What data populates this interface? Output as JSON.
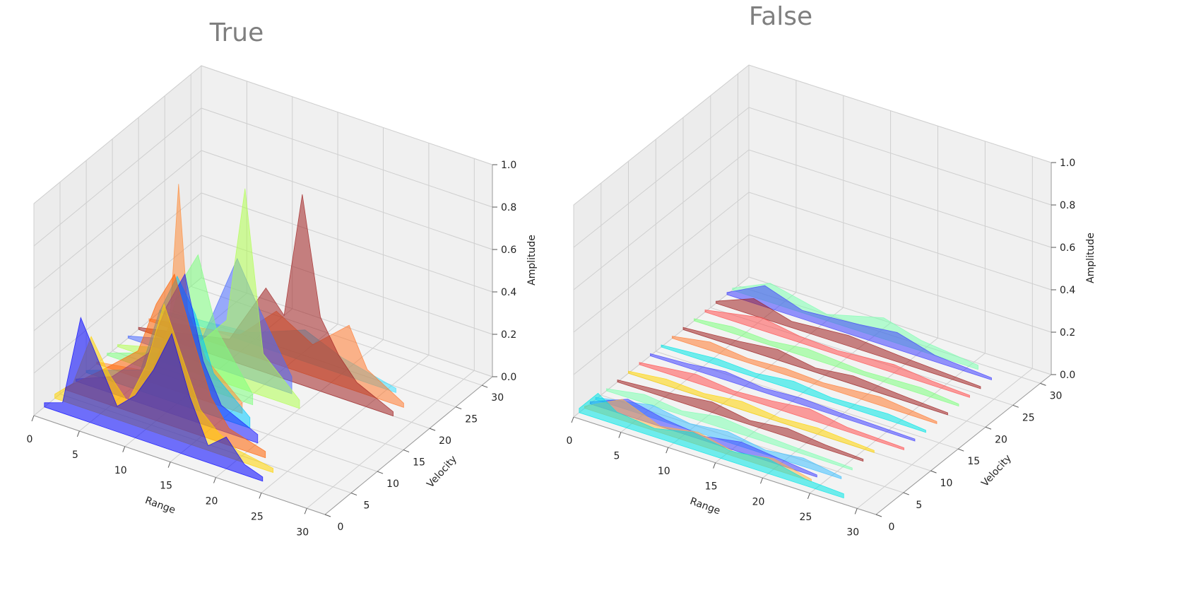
{
  "chart_data": [
    {
      "type": "area",
      "projection": "3d",
      "title": "True",
      "xlabel": "Range",
      "ylabel": "Velocity",
      "zlabel": "Amplitude",
      "xlim": [
        0,
        32
      ],
      "ylim": [
        0,
        32
      ],
      "zlim": [
        0,
        1
      ],
      "xticks": [
        0,
        5,
        10,
        15,
        20,
        25,
        30
      ],
      "yticks": [
        0,
        5,
        10,
        15,
        20,
        25,
        30
      ],
      "zticks": [
        "0.0",
        "0.2",
        "0.4",
        "0.6",
        "0.8",
        "1.0"
      ],
      "grid": true,
      "colormap": [
        "#0000ff",
        "#0080ff",
        "#00ffff",
        "#80ff80",
        "#ffff00",
        "#ff8000",
        "#ff0000",
        "#800000"
      ],
      "series": [
        {
          "velocity": 2,
          "color": "#0000ff",
          "points": [
            [
              0,
              0.02
            ],
            [
              2,
              0.05
            ],
            [
              4,
              0.48
            ],
            [
              6,
              0.3
            ],
            [
              8,
              0.12
            ],
            [
              10,
              0.2
            ],
            [
              12,
              0.35
            ],
            [
              14,
              0.55
            ],
            [
              16,
              0.28
            ],
            [
              18,
              0.08
            ],
            [
              20,
              0.15
            ],
            [
              22,
              0.05
            ],
            [
              24,
              0.02
            ]
          ]
        },
        {
          "velocity": 4,
          "color": "#ffd400",
          "points": [
            [
              0,
              0.02
            ],
            [
              2,
              0.1
            ],
            [
              4,
              0.35
            ],
            [
              6,
              0.2
            ],
            [
              8,
              0.1
            ],
            [
              10,
              0.3
            ],
            [
              12,
              0.62
            ],
            [
              14,
              0.4
            ],
            [
              16,
              0.18
            ],
            [
              18,
              0.1
            ],
            [
              20,
              0.05
            ],
            [
              24,
              0.02
            ]
          ]
        },
        {
          "velocity": 6,
          "color": "#ff6000",
          "points": [
            [
              0,
              0.01
            ],
            [
              4,
              0.15
            ],
            [
              8,
              0.3
            ],
            [
              10,
              0.55
            ],
            [
              12,
              0.72
            ],
            [
              14,
              0.45
            ],
            [
              16,
              0.2
            ],
            [
              18,
              0.08
            ],
            [
              22,
              0.03
            ]
          ]
        },
        {
          "velocity": 8,
          "color": "#1a1aff",
          "points": [
            [
              0,
              0.01
            ],
            [
              4,
              0.08
            ],
            [
              8,
              0.25
            ],
            [
              10,
              0.5
            ],
            [
              12,
              0.68
            ],
            [
              14,
              0.3
            ],
            [
              16,
              0.12
            ],
            [
              20,
              0.04
            ]
          ]
        },
        {
          "velocity": 10,
          "color": "#00c8ff",
          "points": [
            [
              0,
              0.01
            ],
            [
              6,
              0.1
            ],
            [
              8,
              0.4
            ],
            [
              10,
              0.6
            ],
            [
              12,
              0.45
            ],
            [
              14,
              0.2
            ],
            [
              18,
              0.05
            ]
          ]
        },
        {
          "velocity": 12,
          "color": "#ff8c3a",
          "points": [
            [
              0,
              0.01
            ],
            [
              6,
              0.05
            ],
            [
              8,
              0.3
            ],
            [
              9,
              0.98
            ],
            [
              10,
              0.4
            ],
            [
              12,
              0.2
            ],
            [
              16,
              0.05
            ]
          ]
        },
        {
          "velocity": 14,
          "color": "#7dff7d",
          "points": [
            [
              0,
              0.01
            ],
            [
              6,
              0.1
            ],
            [
              8,
              0.45
            ],
            [
              10,
              0.62
            ],
            [
              12,
              0.3
            ],
            [
              16,
              0.05
            ]
          ]
        },
        {
          "velocity": 16,
          "color": "#b0ff50",
          "points": [
            [
              0,
              0.01
            ],
            [
              8,
              0.1
            ],
            [
              12,
              0.3
            ],
            [
              14,
              0.95
            ],
            [
              16,
              0.2
            ],
            [
              20,
              0.04
            ]
          ]
        },
        {
          "velocity": 18,
          "color": "#4a6bff",
          "points": [
            [
              0,
              0.01
            ],
            [
              8,
              0.1
            ],
            [
              12,
              0.55
            ],
            [
              14,
              0.38
            ],
            [
              18,
              0.08
            ]
          ]
        },
        {
          "velocity": 20,
          "color": "#a02020",
          "points": [
            [
              0,
              0.01
            ],
            [
              10,
              0.1
            ],
            [
              14,
              0.4
            ],
            [
              16,
              0.3
            ],
            [
              18,
              0.9
            ],
            [
              20,
              0.35
            ],
            [
              22,
              0.2
            ],
            [
              24,
              0.1
            ],
            [
              28,
              0.02
            ]
          ]
        },
        {
          "velocity": 22,
          "color": "#ff7a30",
          "points": [
            [
              0,
              0.01
            ],
            [
              10,
              0.08
            ],
            [
              14,
              0.25
            ],
            [
              18,
              0.15
            ],
            [
              22,
              0.3
            ],
            [
              24,
              0.12
            ],
            [
              28,
              0.02
            ]
          ]
        },
        {
          "velocity": 24,
          "color": "#40e0ff",
          "points": [
            [
              0,
              0.01
            ],
            [
              10,
              0.05
            ],
            [
              16,
              0.15
            ],
            [
              20,
              0.08
            ],
            [
              26,
              0.02
            ]
          ]
        }
      ]
    },
    {
      "type": "area",
      "projection": "3d",
      "title": "False",
      "xlabel": "Range",
      "ylabel": "Velocity",
      "zlabel": "Amplitude",
      "xlim": [
        0,
        32
      ],
      "ylim": [
        0,
        32
      ],
      "zlim": [
        0,
        1
      ],
      "xticks": [
        0,
        5,
        10,
        15,
        20,
        25,
        30
      ],
      "yticks": [
        0,
        5,
        10,
        15,
        20,
        25,
        30
      ],
      "zticks": [
        "0.0",
        "0.2",
        "0.4",
        "0.6",
        "0.8",
        "1.0"
      ],
      "grid": true,
      "colormap": [
        "#0000ff",
        "#0080ff",
        "#00ffff",
        "#80ff80",
        "#ffff00",
        "#ff8000",
        "#ff0000",
        "#800000"
      ],
      "series": [
        {
          "velocity": 1,
          "color": "#00e5e5",
          "points": [
            [
              0,
              0.02
            ],
            [
              2,
              0.12
            ],
            [
              4,
              0.06
            ],
            [
              8,
              0.04
            ],
            [
              12,
              0.08
            ],
            [
              16,
              0.05
            ],
            [
              20,
              0.07
            ],
            [
              24,
              0.03
            ],
            [
              28,
              0.02
            ]
          ]
        },
        {
          "velocity": 2,
          "color": "#ffb347",
          "points": [
            [
              0,
              0.01
            ],
            [
              4,
              0.1
            ],
            [
              8,
              0.03
            ],
            [
              12,
              0.06
            ],
            [
              16,
              0.02
            ],
            [
              20,
              0.05
            ],
            [
              24,
              0.01
            ]
          ]
        },
        {
          "velocity": 3,
          "color": "#4040ff",
          "points": [
            [
              0,
              0.01
            ],
            [
              4,
              0.08
            ],
            [
              8,
              0.04
            ],
            [
              12,
              0.02
            ],
            [
              16,
              0.05
            ],
            [
              20,
              0.03
            ],
            [
              24,
              0.01
            ]
          ]
        },
        {
          "velocity": 4,
          "color": "#40c0ff",
          "points": [
            [
              0,
              0.01
            ],
            [
              6,
              0.06
            ],
            [
              10,
              0.03
            ],
            [
              14,
              0.05
            ],
            [
              18,
              0.02
            ],
            [
              22,
              0.04
            ],
            [
              26,
              0.01
            ]
          ]
        },
        {
          "velocity": 6,
          "color": "#7dffb0",
          "points": [
            [
              0,
              0.01
            ],
            [
              4,
              0.04
            ],
            [
              8,
              0.02
            ],
            [
              12,
              0.05
            ],
            [
              16,
              0.03
            ],
            [
              20,
              0.02
            ],
            [
              26,
              0.01
            ]
          ]
        },
        {
          "velocity": 8,
          "color": "#a02020",
          "points": [
            [
              0,
              0.01
            ],
            [
              6,
              0.03
            ],
            [
              10,
              0.05
            ],
            [
              14,
              0.02
            ],
            [
              18,
              0.04
            ],
            [
              22,
              0.02
            ],
            [
              26,
              0.01
            ]
          ]
        },
        {
          "velocity": 10,
          "color": "#ffd400",
          "points": [
            [
              0,
              0.01
            ],
            [
              4,
              0.03
            ],
            [
              8,
              0.02
            ],
            [
              12,
              0.04
            ],
            [
              16,
              0.02
            ],
            [
              20,
              0.03
            ],
            [
              26,
              0.01
            ]
          ]
        },
        {
          "velocity": 12,
          "color": "#ff5050",
          "points": [
            [
              0,
              0.01
            ],
            [
              6,
              0.04
            ],
            [
              10,
              0.02
            ],
            [
              14,
              0.03
            ],
            [
              18,
              0.05
            ],
            [
              22,
              0.02
            ],
            [
              28,
              0.01
            ]
          ]
        },
        {
          "velocity": 14,
          "color": "#4040ff",
          "points": [
            [
              0,
              0.01
            ],
            [
              4,
              0.02
            ],
            [
              8,
              0.04
            ],
            [
              12,
              0.02
            ],
            [
              16,
              0.03
            ],
            [
              20,
              0.02
            ],
            [
              28,
              0.01
            ]
          ]
        },
        {
          "velocity": 16,
          "color": "#00e5e5",
          "points": [
            [
              0,
              0.01
            ],
            [
              6,
              0.03
            ],
            [
              10,
              0.02
            ],
            [
              14,
              0.04
            ],
            [
              18,
              0.02
            ],
            [
              24,
              0.03
            ],
            [
              28,
              0.01
            ]
          ]
        },
        {
          "velocity": 18,
          "color": "#ff7a30",
          "points": [
            [
              0,
              0.01
            ],
            [
              4,
              0.04
            ],
            [
              8,
              0.02
            ],
            [
              12,
              0.03
            ],
            [
              16,
              0.02
            ],
            [
              22,
              0.04
            ],
            [
              28,
              0.01
            ]
          ]
        },
        {
          "velocity": 20,
          "color": "#a02020",
          "points": [
            [
              0,
              0.01
            ],
            [
              6,
              0.03
            ],
            [
              10,
              0.05
            ],
            [
              14,
              0.02
            ],
            [
              18,
              0.04
            ],
            [
              24,
              0.02
            ],
            [
              28,
              0.01
            ]
          ]
        },
        {
          "velocity": 22,
          "color": "#7dff7d",
          "points": [
            [
              0,
              0.01
            ],
            [
              4,
              0.03
            ],
            [
              8,
              0.02
            ],
            [
              12,
              0.04
            ],
            [
              18,
              0.02
            ],
            [
              24,
              0.03
            ],
            [
              28,
              0.01
            ]
          ]
        },
        {
          "velocity": 24,
          "color": "#ff5050",
          "points": [
            [
              0,
              0.01
            ],
            [
              6,
              0.06
            ],
            [
              10,
              0.03
            ],
            [
              14,
              0.02
            ],
            [
              20,
              0.04
            ],
            [
              24,
              0.02
            ],
            [
              28,
              0.01
            ]
          ]
        },
        {
          "velocity": 26,
          "color": "#a02020",
          "points": [
            [
              0,
              0.01
            ],
            [
              4,
              0.08
            ],
            [
              8,
              0.03
            ],
            [
              14,
              0.05
            ],
            [
              20,
              0.03
            ],
            [
              24,
              0.02
            ],
            [
              28,
              0.01
            ]
          ]
        },
        {
          "velocity": 28,
          "color": "#4040ff",
          "points": [
            [
              0,
              0.01
            ],
            [
              4,
              0.1
            ],
            [
              8,
              0.04
            ],
            [
              14,
              0.06
            ],
            [
              18,
              0.08
            ],
            [
              22,
              0.03
            ],
            [
              28,
              0.01
            ]
          ]
        },
        {
          "velocity": 29,
          "color": "#7dffb0",
          "points": [
            [
              0,
              0.01
            ],
            [
              4,
              0.09
            ],
            [
              10,
              0.03
            ],
            [
              16,
              0.1
            ],
            [
              20,
              0.05
            ],
            [
              26,
              0.02
            ]
          ]
        }
      ]
    }
  ]
}
